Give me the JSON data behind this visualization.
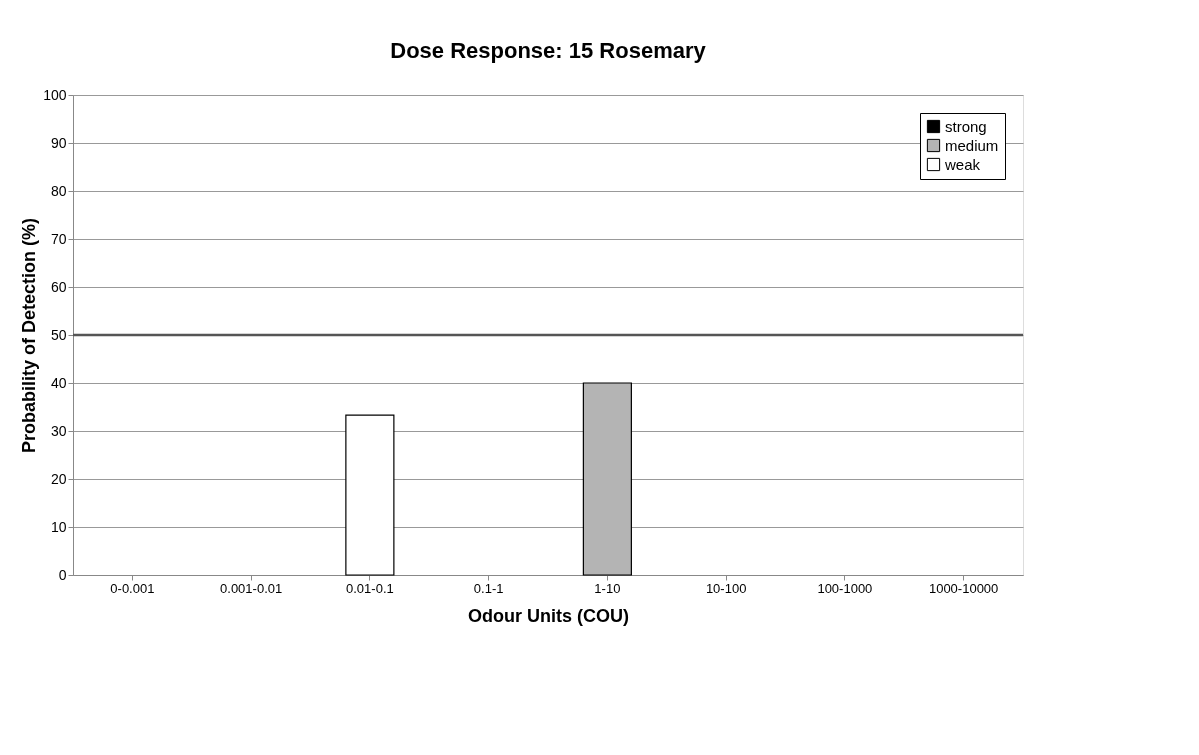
{
  "chart_data": {
    "type": "bar",
    "title": "Dose Response: 15 Rosemary",
    "xlabel": "Odour Units (COU)",
    "ylabel": "Probability of Detection (%)",
    "categories": [
      "0-0.001",
      "0.001-0.01",
      "0.01-0.1",
      "0.1-1",
      "1-10",
      "10-100",
      "100-1000",
      "1000-10000"
    ],
    "series": [
      {
        "name": "strong",
        "color": "#000000",
        "values": [
          0,
          0,
          0,
          0,
          0,
          0,
          0,
          0
        ]
      },
      {
        "name": "medium",
        "color": "#b4b4b4",
        "values": [
          0,
          0,
          0,
          0,
          40,
          0,
          0,
          0
        ]
      },
      {
        "name": "weak",
        "color": "#ffffff",
        "values": [
          0,
          0,
          33.3,
          0,
          0,
          0,
          0,
          0
        ]
      }
    ],
    "ylim": [
      0,
      100
    ],
    "yticks": [
      0,
      10,
      20,
      30,
      40,
      50,
      60,
      70,
      80,
      90,
      100
    ],
    "grid": "y",
    "legend": "top right",
    "ref_lines": [
      {
        "axis": "y",
        "value": 50,
        "color": "#555555"
      }
    ]
  }
}
